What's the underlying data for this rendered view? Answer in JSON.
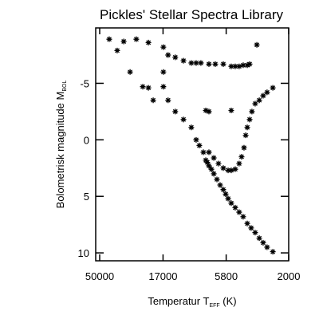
{
  "chart_data": {
    "type": "scatter",
    "title": "Pickles' Stellar Spectra Library",
    "xlabel": [
      "Temperatur T",
      "EFF",
      " (K)"
    ],
    "ylabel": [
      "Bolometrisk magnitude M",
      "BOL"
    ],
    "xscale": "log",
    "xlim": [
      50000,
      2000
    ],
    "xticks": [
      50000,
      17000,
      5800,
      2000
    ],
    "ylim": [
      10.7,
      -9.9
    ],
    "yticks": [
      -5,
      0,
      5,
      10
    ],
    "color": "#000000",
    "series": [
      {
        "name": "stars",
        "x": [
          42500,
          37100,
          33200,
          26800,
          21800,
          29800,
          16900,
          15600,
          13800,
          12000,
          10500,
          9670,
          8920,
          7780,
          6980,
          6090,
          5320,
          4970,
          4650,
          4340,
          4050,
          3890,
          3440,
          24000,
          21800,
          20100,
          16900,
          16900,
          15600,
          13800,
          12000,
          10500,
          9670,
          9160,
          8550,
          8210,
          7780,
          7160,
          6790,
          6430,
          6090,
          5850,
          5610,
          5320,
          4970,
          4650,
          4340,
          4050,
          3790,
          3540,
          3300,
          3090,
          2890,
          2620,
          8210,
          7780,
          5320,
          7780,
          7160,
          6610,
          6090,
          5610,
          5320,
          4970,
          4650,
          4460,
          4280,
          4160,
          4050,
          3890,
          3740,
          3540,
          3300,
          3090,
          2890,
          2620,
          7460,
          8000
        ],
        "values": [
          -8.9,
          -7.9,
          -8.7,
          -8.9,
          -8.6,
          -6.0,
          -8.2,
          -7.5,
          -7.3,
          -7.0,
          -6.8,
          -6.8,
          -6.8,
          -6.7,
          -6.7,
          -6.7,
          -6.5,
          -6.5,
          -6.5,
          -6.6,
          -6.6,
          -6.7,
          -8.4,
          -4.7,
          -4.6,
          -3.5,
          -6.0,
          -4.7,
          -3.5,
          -2.5,
          -1.8,
          -1.1,
          0,
          0.5,
          1.1,
          1.8,
          2.3,
          3.0,
          3.5,
          4.0,
          4.4,
          4.8,
          5.2,
          5.6,
          6.0,
          6.4,
          6.8,
          7.4,
          7.8,
          8.2,
          8.7,
          9.1,
          9.5,
          9.9,
          -2.6,
          -2.5,
          -2.6,
          1.1,
          1.6,
          2.1,
          2.5,
          2.7,
          2.7,
          2.6,
          2.1,
          1.5,
          0.7,
          -0.4,
          -1.1,
          -1.8,
          -2.5,
          -3.2,
          -3.5,
          -3.9,
          -4.2,
          -4.6,
          2.6,
          2.0
        ]
      }
    ]
  }
}
